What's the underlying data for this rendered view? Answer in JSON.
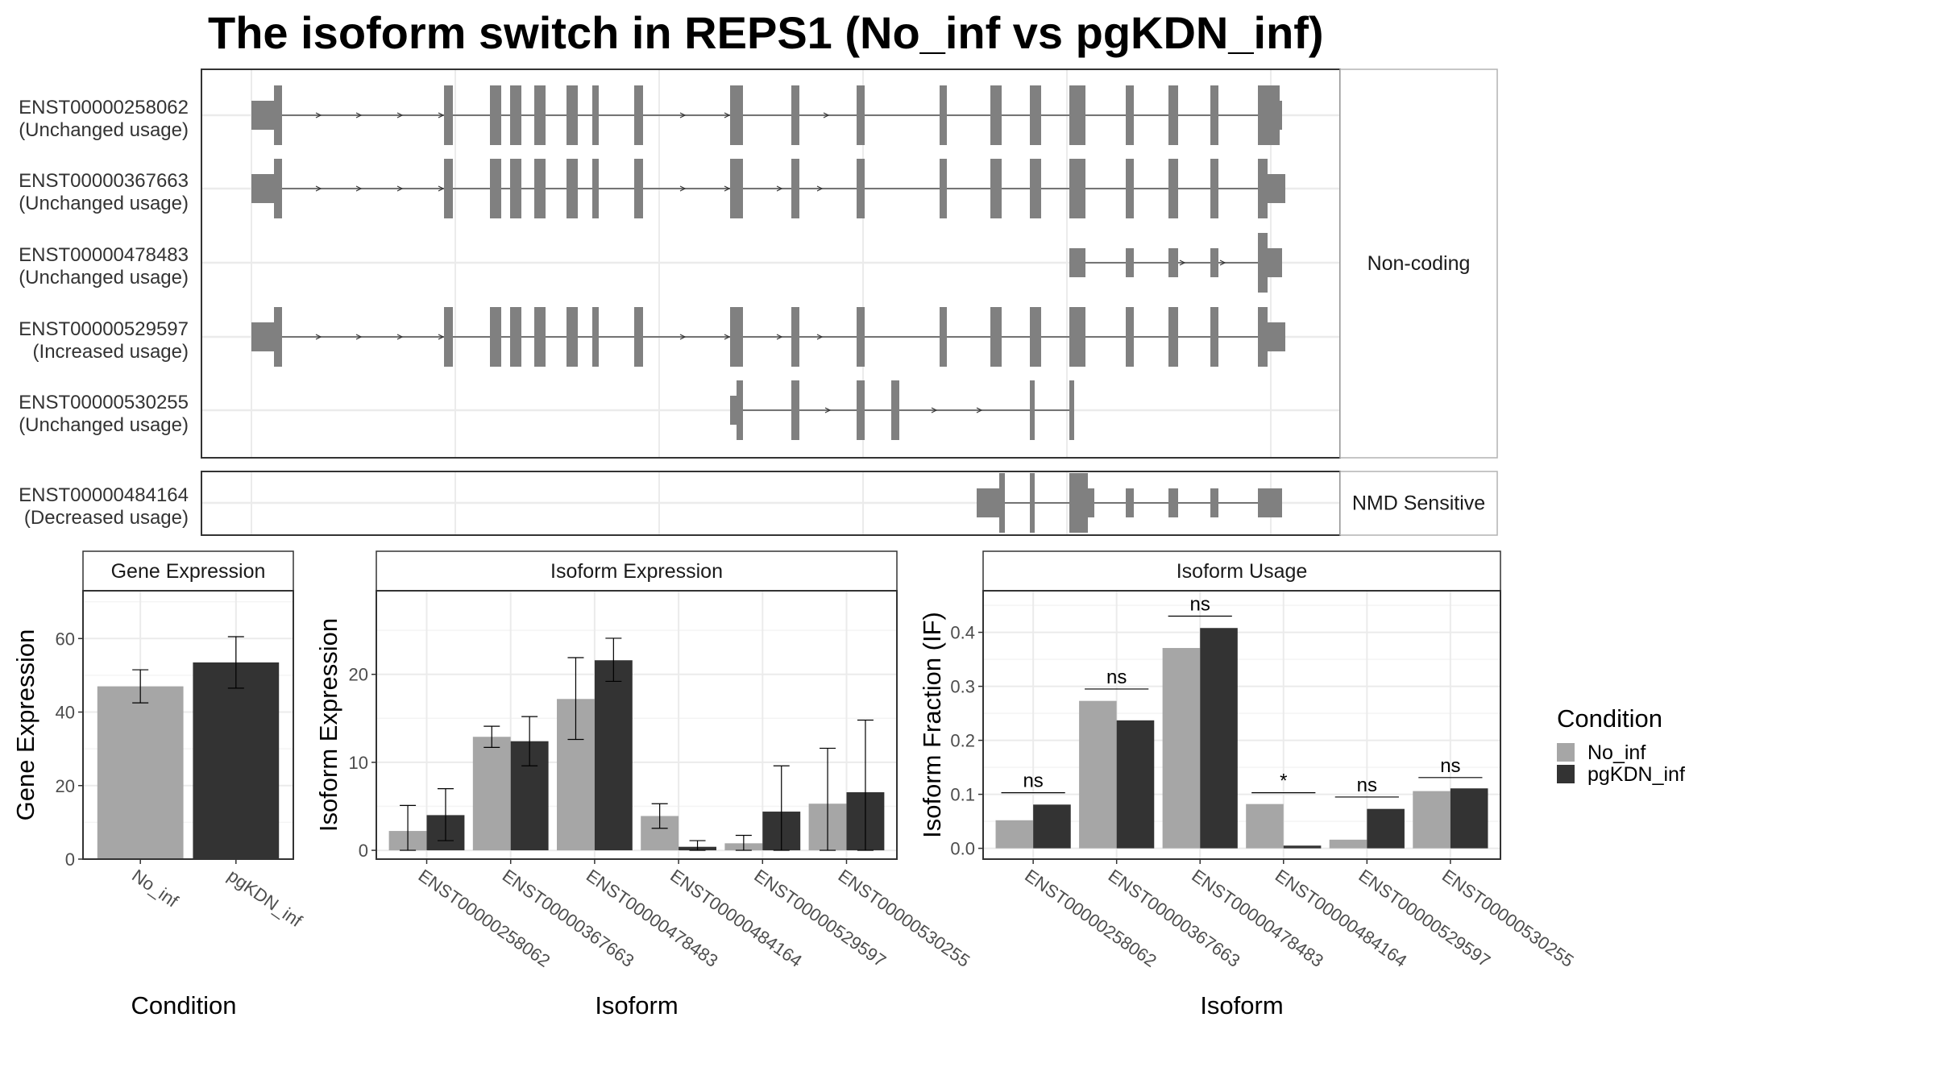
{
  "title": "The isoform switch in REPS1 (No_inf vs pgKDN_inf)",
  "colors": {
    "no_inf": "#a6a6a6",
    "pgkdn_inf": "#333333",
    "exon": "#808080",
    "grid": "#ebebeb",
    "panel_border": "#333333"
  },
  "structure": {
    "groups": [
      {
        "label": "Non-coding",
        "transcripts": [
          {
            "id": "ENST00000258062",
            "usage": "(Unchanged usage)"
          },
          {
            "id": "ENST00000367663",
            "usage": "(Unchanged usage)"
          },
          {
            "id": "ENST00000478483",
            "usage": "(Unchanged usage)"
          },
          {
            "id": "ENST00000529597",
            "usage": "(Increased usage)"
          },
          {
            "id": "ENST00000530255",
            "usage": "(Unchanged usage)"
          }
        ]
      },
      {
        "label": "NMD Sensitive",
        "transcripts": [
          {
            "id": "ENST00000484164",
            "usage": "(Decreased usage)"
          }
        ]
      }
    ]
  },
  "legend": {
    "title": "Condition",
    "items": [
      {
        "label": "No_inf",
        "color_key": "no_inf"
      },
      {
        "label": "pgKDN_inf",
        "color_key": "pgkdn_inf"
      }
    ]
  },
  "chart_data": [
    {
      "type": "bar",
      "strip": "Gene Expression",
      "xlabel": "Condition",
      "ylabel": "Gene Expression",
      "ylim": [
        0,
        73
      ],
      "yticks": [
        0,
        20,
        40,
        60
      ],
      "categories": [
        "No_inf",
        "pgKDN_inf"
      ],
      "values": [
        47,
        53.5
      ],
      "error_low": [
        42.5,
        46.5
      ],
      "error_high": [
        51.5,
        60.5
      ]
    },
    {
      "type": "bar",
      "strip": "Isoform Expression",
      "xlabel": "Isoform",
      "ylabel": "Isoform Expression",
      "ylim": [
        -1,
        29.5
      ],
      "yticks": [
        0,
        10,
        20
      ],
      "categories": [
        "ENST00000258062",
        "ENST00000367663",
        "ENST00000478483",
        "ENST00000484164",
        "ENST00000529597",
        "ENST00000530255"
      ],
      "series": [
        {
          "name": "No_inf",
          "values": [
            2.2,
            12.9,
            17.2,
            3.9,
            0.8,
            5.3
          ],
          "error_low": [
            0,
            11.7,
            12.6,
            2.5,
            0,
            0
          ],
          "error_high": [
            5.1,
            14.1,
            21.9,
            5.3,
            1.7,
            11.6
          ]
        },
        {
          "name": "pgKDN_inf",
          "values": [
            4.0,
            12.4,
            21.6,
            0.4,
            4.4,
            6.6
          ],
          "error_low": [
            1.1,
            9.6,
            19.2,
            0,
            0,
            0
          ],
          "error_high": [
            7.0,
            15.2,
            24.1,
            1.1,
            9.6,
            14.8
          ]
        }
      ]
    },
    {
      "type": "bar",
      "strip": "Isoform Usage",
      "xlabel": "Isoform",
      "ylabel": "Isoform Fraction (IF)",
      "ylim": [
        -0.02,
        0.477
      ],
      "yticks": [
        0.0,
        0.1,
        0.2,
        0.3,
        0.4
      ],
      "ytick_labels": [
        "0.0",
        "0.1",
        "0.2",
        "0.3",
        "0.4"
      ],
      "categories": [
        "ENST00000258062",
        "ENST00000367663",
        "ENST00000478483",
        "ENST00000484164",
        "ENST00000529597",
        "ENST00000530255"
      ],
      "series": [
        {
          "name": "No_inf",
          "values": [
            0.052,
            0.273,
            0.371,
            0.082,
            0.016,
            0.106
          ]
        },
        {
          "name": "pgKDN_inf",
          "values": [
            0.081,
            0.237,
            0.408,
            0.005,
            0.073,
            0.111
          ]
        }
      ],
      "significance": [
        "ns",
        "ns",
        "ns",
        "*",
        "ns",
        "ns"
      ],
      "significance_y": [
        0.103,
        0.295,
        0.43,
        0.103,
        0.095,
        0.131
      ]
    }
  ]
}
